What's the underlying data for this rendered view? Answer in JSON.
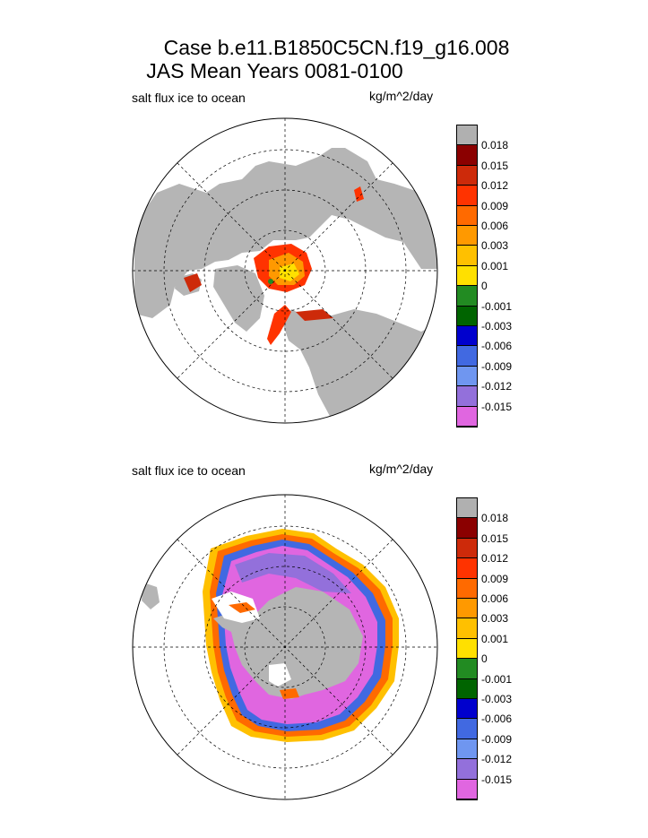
{
  "header": {
    "line1": "Case b.e11.B1850C5CN.f19_g16.008",
    "line2": "JAS Mean    Years 0081-0100"
  },
  "chart_data": [
    {
      "type": "heatmap",
      "projection": "polar stereographic",
      "hemisphere": "north",
      "title": "salt flux ice to ocean",
      "units": "kg/m^2/day",
      "colorbar_levels": [
        "0.018",
        "0.015",
        "0.012",
        "0.009",
        "0.006",
        "0.003",
        "0.001",
        "0",
        "-0.001",
        "-0.003",
        "-0.006",
        "-0.009",
        "-0.012",
        "-0.015"
      ],
      "colors": [
        "#b0b0b0",
        "#8b0000",
        "#cd2a0a",
        "#ff3300",
        "#ff6a00",
        "#ff9900",
        "#ffc000",
        "#ffe000",
        "#228b22",
        "#006400",
        "#0000cd",
        "#4169e1",
        "#6f96f0",
        "#9370db",
        "#e066e0"
      ],
      "grid": true
    },
    {
      "type": "heatmap",
      "projection": "polar stereographic",
      "hemisphere": "south",
      "title": "salt flux ice to ocean",
      "units": "kg/m^2/day",
      "colorbar_levels": [
        "0.018",
        "0.015",
        "0.012",
        "0.009",
        "0.006",
        "0.003",
        "0.001",
        "0",
        "-0.001",
        "-0.003",
        "-0.006",
        "-0.009",
        "-0.012",
        "-0.015"
      ],
      "colors": [
        "#b0b0b0",
        "#8b0000",
        "#cd2a0a",
        "#ff3300",
        "#ff6a00",
        "#ff9900",
        "#ffc000",
        "#ffe000",
        "#228b22",
        "#006400",
        "#0000cd",
        "#4169e1",
        "#6f96f0",
        "#9370db",
        "#e066e0"
      ],
      "grid": true
    }
  ]
}
